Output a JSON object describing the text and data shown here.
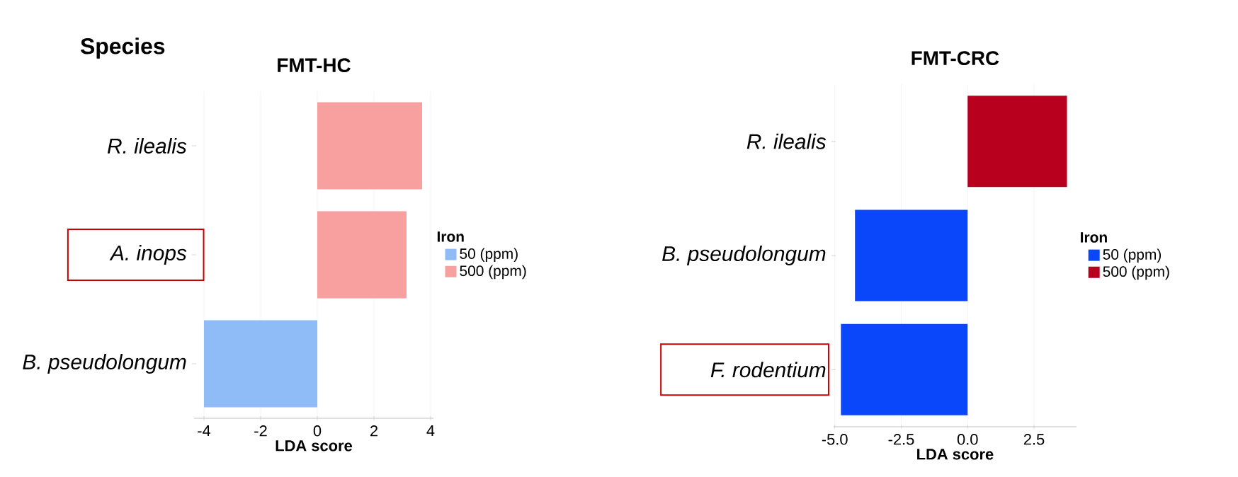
{
  "chart_data": [
    {
      "type": "bar",
      "orientation": "horizontal",
      "title": "FMT-HC",
      "xlabel": "LDA score",
      "legend_title": "Iron",
      "legend": "right",
      "grid": "x",
      "annotations": [
        "Species"
      ],
      "categories": [
        "R. ilealis",
        "A. inops",
        "B. pseudolongum"
      ],
      "series": [
        {
          "name": "50 (ppm)",
          "color": "#8fbcf6",
          "values": [
            null,
            null,
            -4.0
          ]
        },
        {
          "name": "500 (ppm)",
          "color": "#f8a0a0",
          "values": [
            3.7,
            3.15,
            null
          ]
        }
      ],
      "xlim": [
        -4.35,
        4.1
      ],
      "xticks": [
        -4,
        -2,
        0,
        2,
        4
      ]
    },
    {
      "type": "bar",
      "orientation": "horizontal",
      "title": "FMT-CRC",
      "xlabel": "LDA score",
      "legend_title": "Iron",
      "legend": "right",
      "grid": "x",
      "categories": [
        "R. ilealis",
        "B. pseudolongum",
        "F. rodentium"
      ],
      "series": [
        {
          "name": "50 (ppm)",
          "color": "#0a46fa",
          "values": [
            null,
            -4.24,
            -4.77
          ]
        },
        {
          "name": "500 (ppm)",
          "color": "#b8001e",
          "values": [
            3.74,
            null,
            null
          ]
        }
      ],
      "xlim": [
        -5.05,
        4.1
      ],
      "xticks": [
        {
          "value": -5,
          "label": "-5.0"
        },
        {
          "value": -2.5,
          "label": "-2.5"
        },
        {
          "value": 0,
          "label": "0.0"
        },
        {
          "value": 2.5,
          "label": "2.5"
        }
      ]
    }
  ]
}
